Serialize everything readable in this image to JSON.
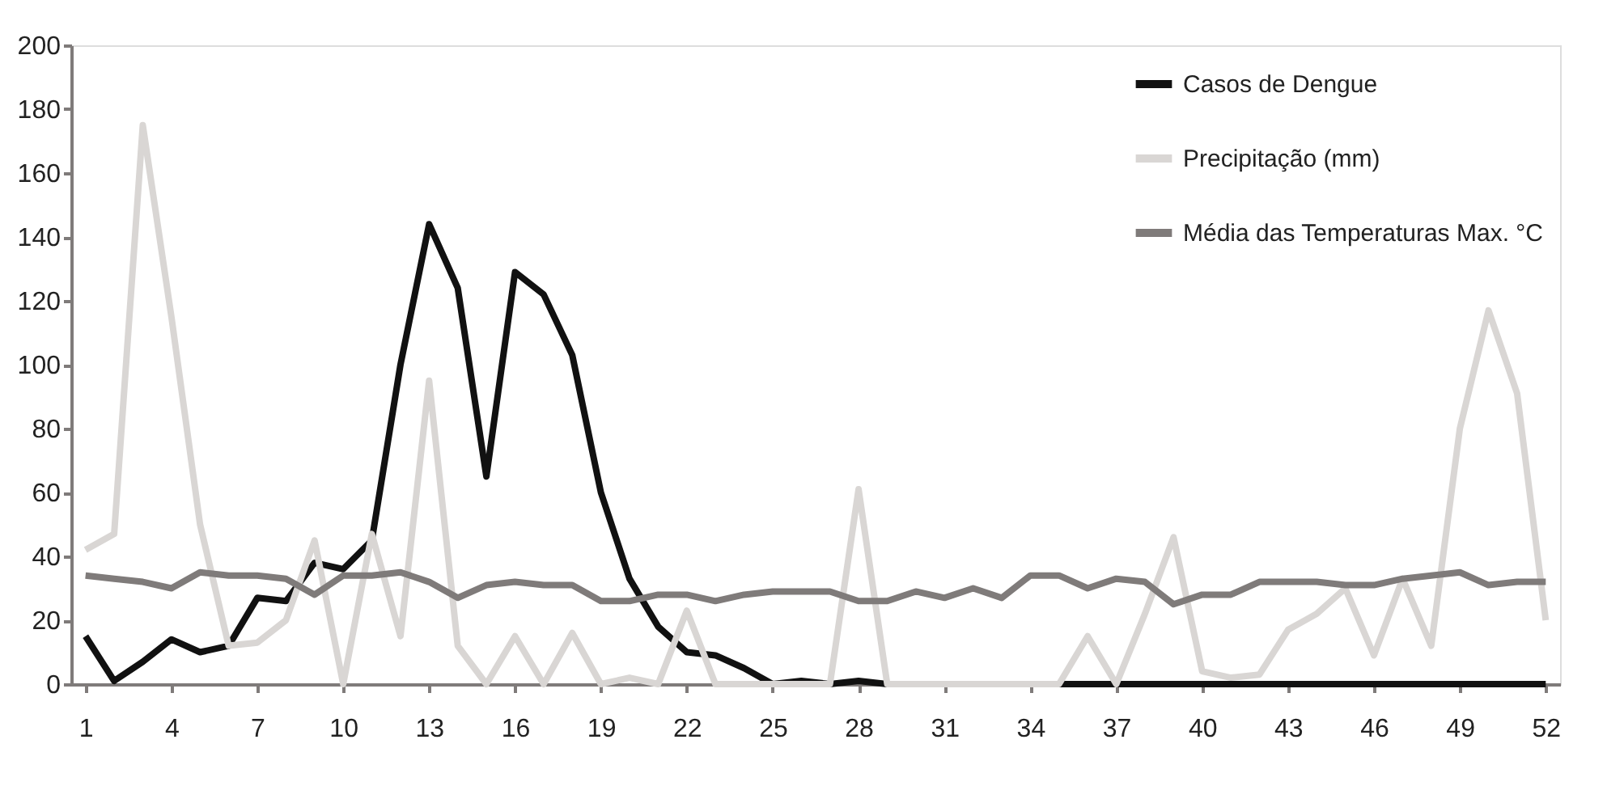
{
  "chart_data": {
    "type": "line",
    "x": [
      1,
      2,
      3,
      4,
      5,
      6,
      7,
      8,
      9,
      10,
      11,
      12,
      13,
      14,
      15,
      16,
      17,
      18,
      19,
      20,
      21,
      22,
      23,
      24,
      25,
      26,
      27,
      28,
      29,
      30,
      31,
      32,
      33,
      34,
      35,
      36,
      37,
      38,
      39,
      40,
      41,
      42,
      43,
      44,
      45,
      46,
      47,
      48,
      49,
      50,
      51,
      52
    ],
    "series": [
      {
        "name": "Casos de Dengue",
        "color": "#111111",
        "values": [
          15,
          1,
          7,
          14,
          10,
          12,
          27,
          26,
          38,
          36,
          45,
          100,
          144,
          124,
          65,
          129,
          122,
          103,
          60,
          33,
          18,
          10,
          9,
          5,
          0,
          1,
          0,
          1,
          0,
          0,
          0,
          0,
          0,
          0,
          0,
          0,
          0,
          0,
          0,
          0,
          0,
          0,
          0,
          0,
          0,
          0,
          0,
          0,
          0,
          0,
          0,
          0
        ]
      },
      {
        "name": "Precipitação (mm)",
        "color": "#d9d6d4",
        "values": [
          42,
          47,
          175,
          115,
          50,
          12,
          13,
          20,
          45,
          0,
          47,
          15,
          95,
          12,
          0,
          15,
          0,
          16,
          0,
          2,
          0,
          23,
          0,
          0,
          0,
          0,
          0,
          61,
          0,
          0,
          0,
          0,
          0,
          0,
          0,
          15,
          0,
          22,
          46,
          4,
          2,
          3,
          17,
          22,
          30,
          9,
          33,
          12,
          80,
          117,
          91,
          20
        ]
      },
      {
        "name": "Média das Temperaturas Max. °C",
        "color": "#7f7b7a",
        "values": [
          34,
          33,
          32,
          30,
          35,
          34,
          34,
          33,
          28,
          34,
          34,
          35,
          32,
          27,
          31,
          32,
          31,
          31,
          26,
          26,
          28,
          28,
          26,
          28,
          29,
          29,
          29,
          26,
          26,
          29,
          27,
          30,
          27,
          34,
          34,
          30,
          33,
          32,
          25,
          28,
          28,
          32,
          32,
          32,
          31,
          31,
          33,
          34,
          35,
          31,
          32,
          32
        ]
      }
    ],
    "xlim": [
      0.5,
      52.5
    ],
    "xticks": [
      1,
      4,
      7,
      10,
      13,
      16,
      19,
      22,
      25,
      28,
      31,
      34,
      37,
      40,
      43,
      46,
      49,
      52
    ],
    "ylim": [
      0,
      200
    ],
    "yticks": [
      0,
      20,
      40,
      60,
      80,
      100,
      120,
      140,
      160,
      180,
      200
    ],
    "grid": false,
    "legend": "top right",
    "marker": "none",
    "line_style": "solid"
  }
}
